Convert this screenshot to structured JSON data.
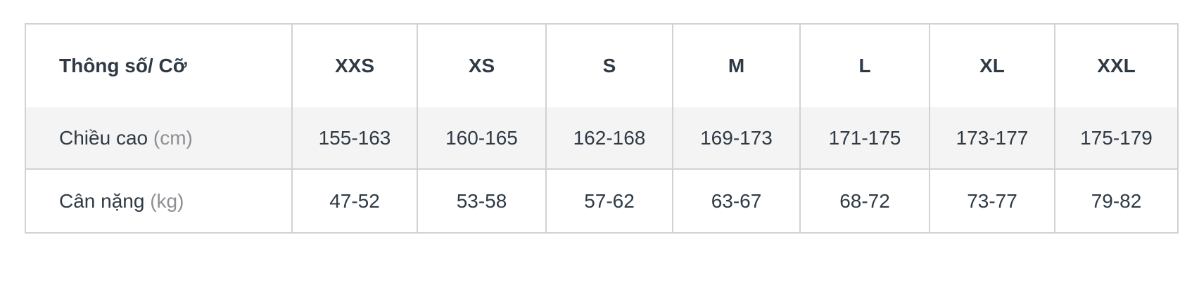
{
  "table": {
    "header": {
      "label": "Thông số/ Cỡ",
      "sizes": [
        "XXS",
        "XS",
        "S",
        "M",
        "L",
        "XL",
        "XXL"
      ]
    },
    "rows": [
      {
        "label": "Chiều cao",
        "unit": "(cm)",
        "values": [
          "155-163",
          "160-165",
          "162-168",
          "169-173",
          "171-175",
          "173-177",
          "175-179"
        ]
      },
      {
        "label": "Cân nặng",
        "unit": "(kg)",
        "values": [
          "47-52",
          "53-58",
          "57-62",
          "63-67",
          "68-72",
          "73-77",
          "79-82"
        ]
      }
    ]
  }
}
